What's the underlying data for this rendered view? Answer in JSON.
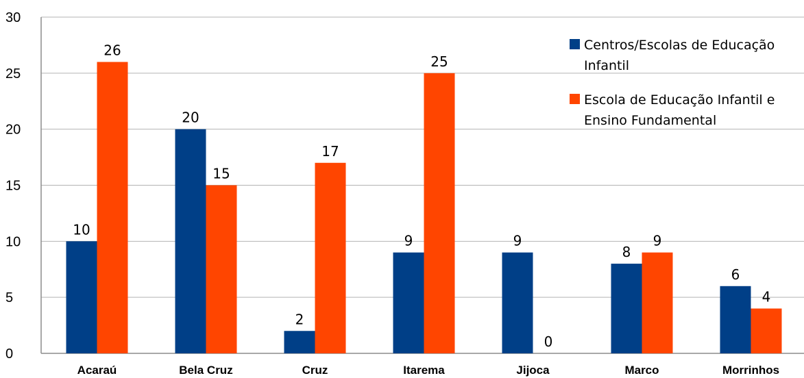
{
  "chart_data": {
    "type": "bar",
    "categories": [
      "Acaraú",
      "Bela Cruz",
      "Cruz",
      "Itarema",
      "Jijoca",
      "Marco",
      "Morrinhos"
    ],
    "series": [
      {
        "name": "Centros/Escolas de Educação Infantil",
        "legend_lines": [
          "Centros/Escolas de Educação",
          "Infantil"
        ],
        "color": "#003F87",
        "values": [
          10,
          20,
          2,
          9,
          9,
          8,
          6
        ]
      },
      {
        "name": "Escola de Educação Infantil e Ensino Fundamental",
        "legend_lines": [
          "Escola de Educação Infantil e",
          "Ensino Fundamental"
        ],
        "color": "#FF4500",
        "values": [
          26,
          15,
          17,
          25,
          0,
          9,
          4
        ]
      }
    ],
    "ylim": [
      0,
      30
    ],
    "yticks": [
      0,
      5,
      10,
      15,
      20,
      25,
      30
    ],
    "grid": true,
    "legend_position": "top-right",
    "data_labels": true,
    "title": "",
    "xlabel": "",
    "ylabel": ""
  }
}
